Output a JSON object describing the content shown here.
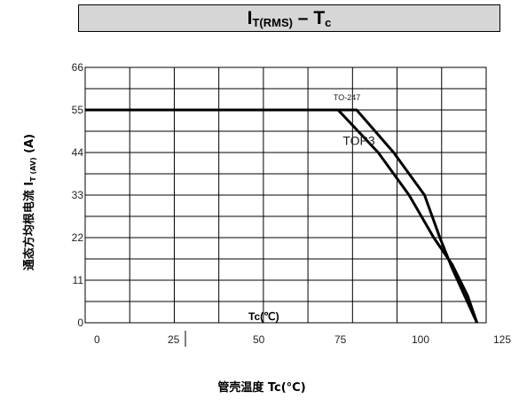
{
  "title": {
    "main": "I",
    "sub": "T(RMS)",
    "dash": " – ",
    "tail_main": "T",
    "tail_sub": "c"
  },
  "chart_data": {
    "type": "line",
    "xlabel": "管壳温度 Tc(°C)",
    "ylabel": "通态方均根电流 I",
    "ylabel_sub": "T (AV)",
    "ylabel_unit": " (A)",
    "inner_xlabel": "Tc(℃)",
    "xlim": [
      -5,
      125
    ],
    "ylim": [
      0,
      66
    ],
    "xticks": [
      "0",
      "25",
      "50",
      "75",
      "100",
      "125"
    ],
    "yticks": [
      "0",
      "11",
      "22",
      "33",
      "44",
      "55",
      "66"
    ],
    "grid": true,
    "annotations": [
      {
        "text": "TO-247",
        "x": 75.5,
        "y": 57.5
      },
      {
        "text": "TOP3",
        "x": 78.5,
        "y": 46
      }
    ],
    "series": [
      {
        "x": [
          -5,
          77,
          90,
          100,
          108,
          114,
          119,
          122
        ],
        "y": [
          55,
          55,
          44,
          33,
          22,
          15,
          7,
          0
        ]
      },
      {
        "x": [
          -5,
          83,
          95,
          105,
          110,
          114,
          118,
          122
        ],
        "y": [
          55,
          55,
          44,
          33,
          22,
          14,
          7,
          0
        ]
      }
    ]
  }
}
